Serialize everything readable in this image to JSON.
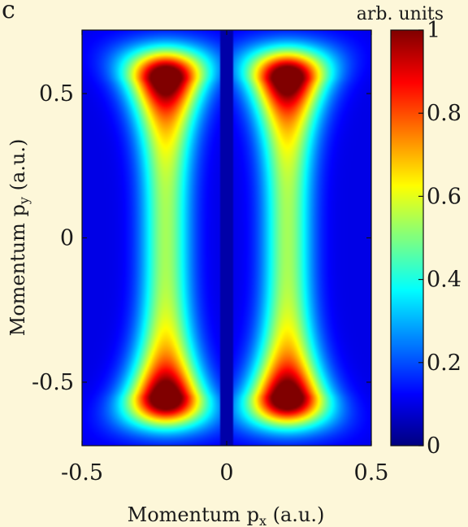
{
  "panel_label": "c",
  "chart_data": {
    "type": "heatmap",
    "xlabel": "Momentum p",
    "xlabel_sub": "x",
    "xlabel_unit": " (a.u.)",
    "ylabel": "Momentum p",
    "ylabel_sub": "y",
    "ylabel_unit": " (a.u.)",
    "xlim": [
      -0.5,
      0.5
    ],
    "ylim": [
      -0.72,
      0.72
    ],
    "xticks": [
      -0.5,
      0,
      0.5
    ],
    "xtick_labels": [
      "-0.5",
      "0",
      "0.5"
    ],
    "yticks": [
      -0.5,
      0,
      0.5
    ],
    "ytick_labels": [
      "-0.5",
      "0",
      "0.5"
    ],
    "colorbar": {
      "title": "arb. units",
      "range": [
        0,
        1
      ],
      "ticks": [
        0,
        0.2,
        0.4,
        0.6,
        0.8,
        1
      ],
      "tick_labels": [
        "0",
        "0.2",
        "0.4",
        "0.6",
        "0.8",
        "1"
      ],
      "colormap": "jet"
    },
    "features": {
      "lobe_centers_x": [
        -0.21,
        0.21
      ],
      "peak_centers_y": [
        -0.55,
        0.55
      ],
      "peak_value": 1.0,
      "waist_value_at_py0": 0.45,
      "background_value": 0.1
    },
    "grid": false
  }
}
